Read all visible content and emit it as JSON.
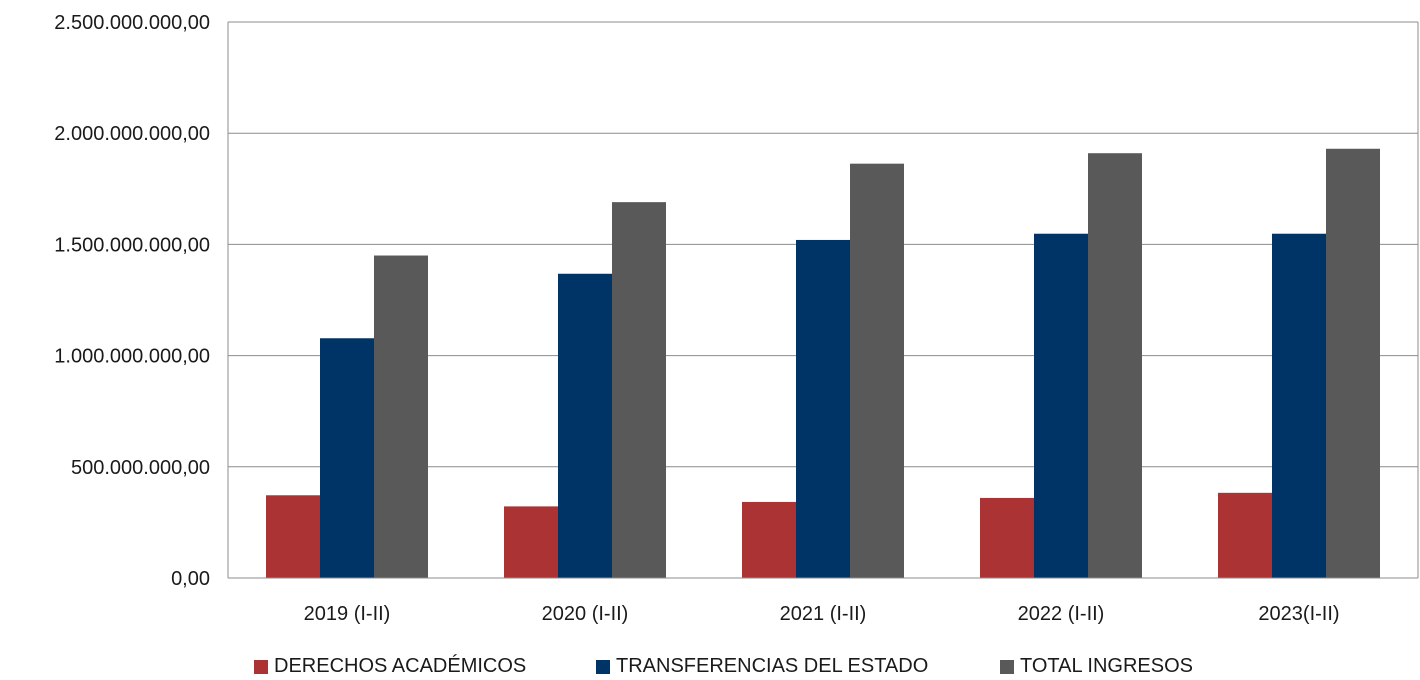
{
  "chart_data": {
    "type": "bar",
    "title": "",
    "xlabel": "",
    "ylabel": "",
    "categories": [
      "2019 (I-II)",
      "2020 (I-II)",
      "2021 (I-II)",
      "2022 (I-II)",
      "2023(I-II)"
    ],
    "series": [
      {
        "name": "DERECHOS ACADÉMICOS",
        "color": "#ab3333",
        "values": [
          372000000,
          322000000,
          342000000,
          360000000,
          383000000
        ]
      },
      {
        "name": "TRANSFERENCIAS DEL ESTADO",
        "color": "#003366",
        "values": [
          1078000000,
          1368000000,
          1520000000,
          1548000000,
          1548000000
        ]
      },
      {
        "name": "TOTAL INGRESOS",
        "color": "#595959",
        "values": [
          1450000000,
          1690000000,
          1863000000,
          1910000000,
          1930000000
        ]
      }
    ],
    "ylim": [
      0,
      2500000000
    ],
    "yticks": [
      0,
      500000000,
      1000000000,
      1500000000,
      2000000000,
      2500000000
    ],
    "ytick_labels": [
      "0,00",
      "500.000.000,00",
      "1.000.000.000,00",
      "1.500.000.000,00",
      "2.000.000.000,00",
      "2.500.000.000,00"
    ],
    "grid": true,
    "legend_position": "bottom"
  }
}
